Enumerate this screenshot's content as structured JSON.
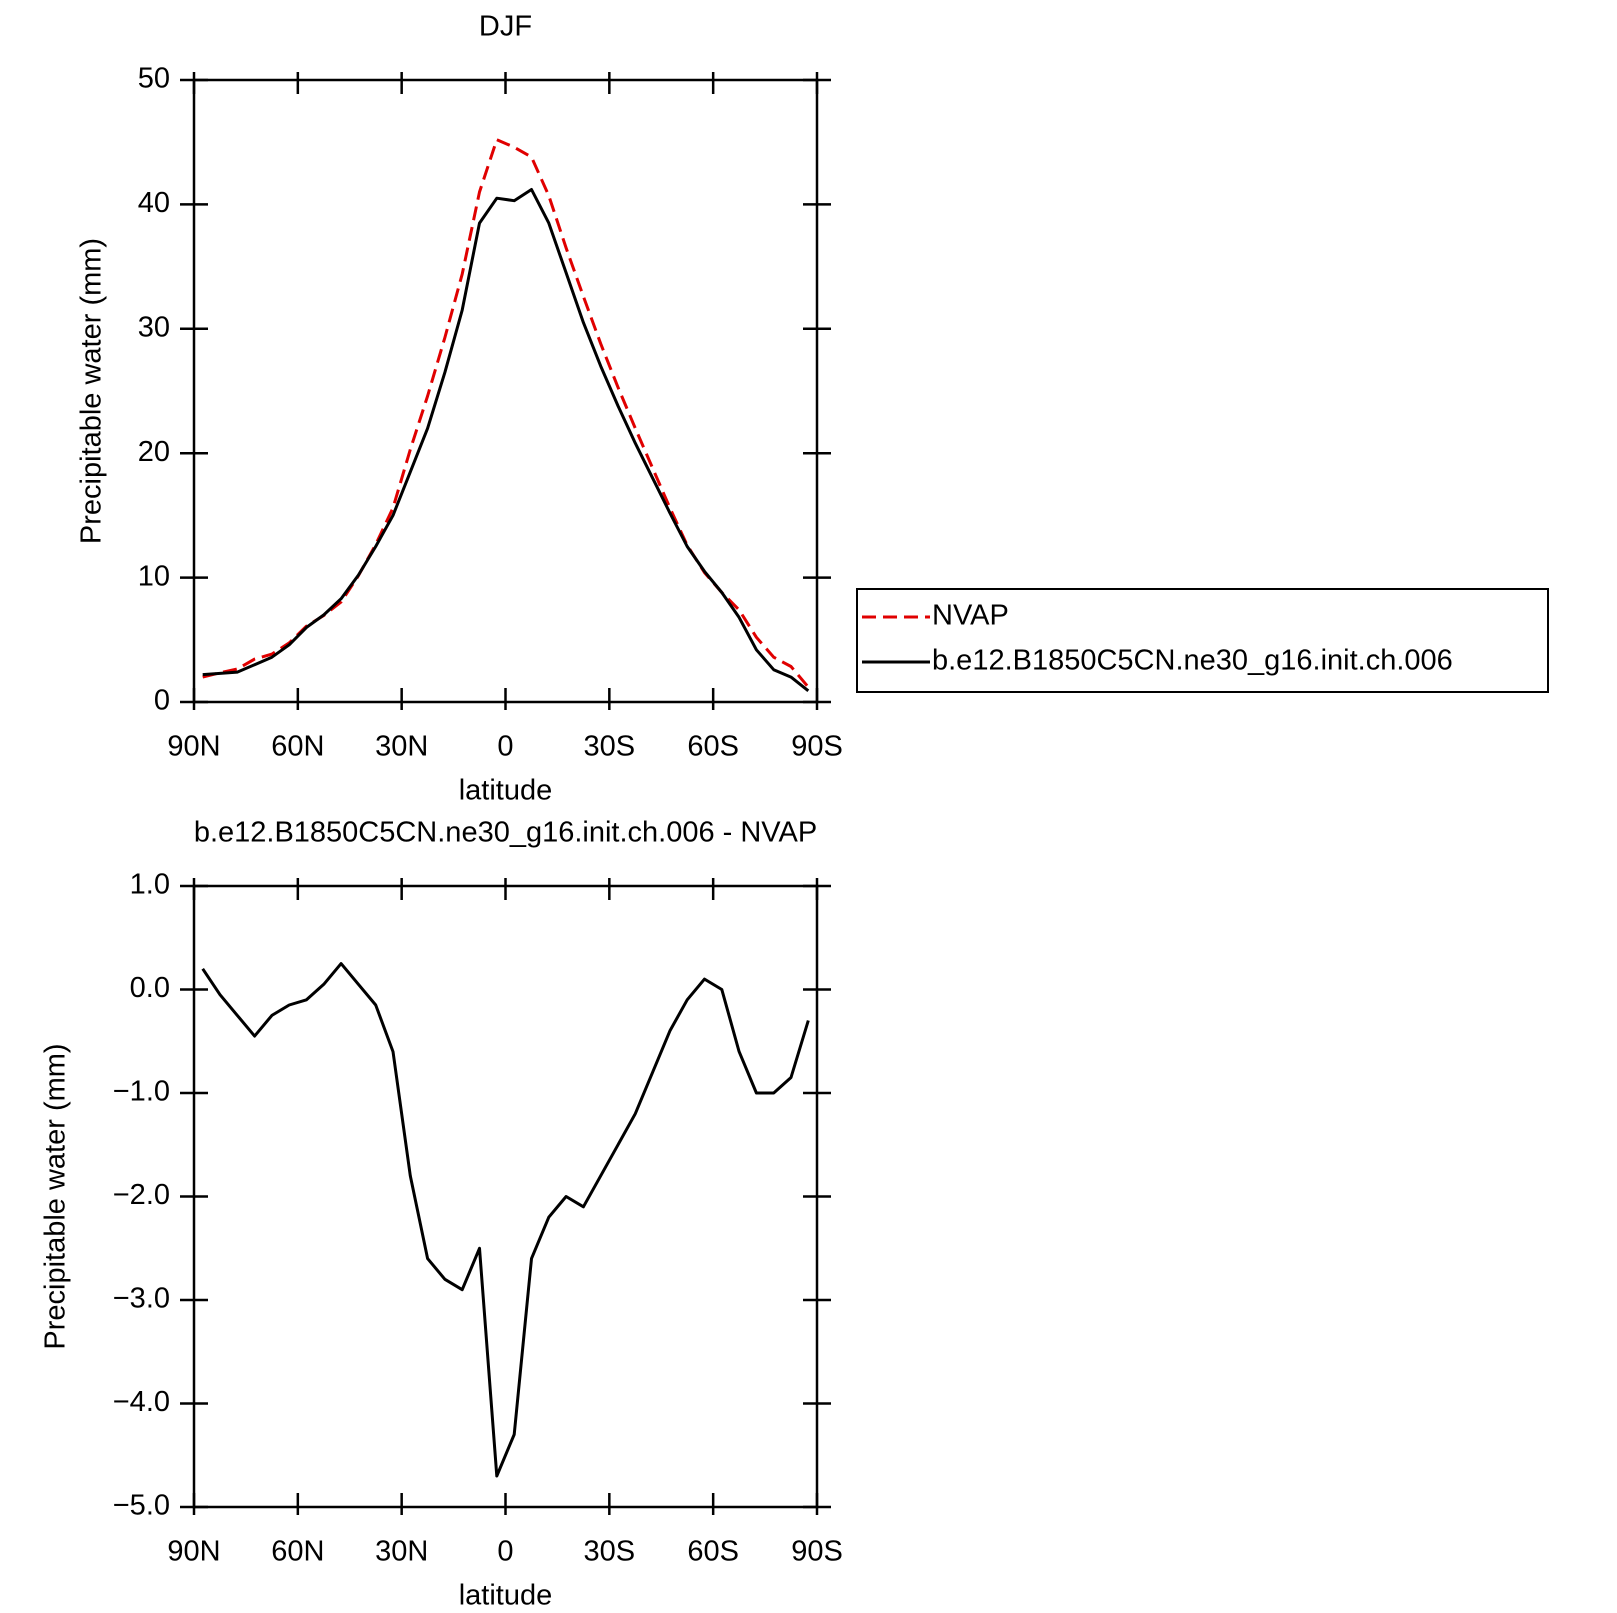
{
  "chart_data": [
    {
      "type": "line",
      "title": "DJF",
      "xlabel": "latitude",
      "ylabel": "Precipitable water (mm)",
      "x": [
        87.5,
        82.5,
        77.5,
        72.5,
        67.5,
        62.5,
        57.5,
        52.5,
        47.5,
        42.5,
        37.5,
        32.5,
        27.5,
        22.5,
        17.5,
        12.5,
        7.5,
        2.5,
        -2.5,
        -7.5,
        -12.5,
        -17.5,
        -22.5,
        -27.5,
        -32.5,
        -37.5,
        -42.5,
        -47.5,
        -52.5,
        -57.5,
        -62.5,
        -67.5,
        -72.5,
        -77.5,
        -82.5,
        -87.5
      ],
      "series": [
        {
          "name": "NVAP",
          "color": "#e00000",
          "dash": true,
          "values": [
            2.0,
            2.35,
            2.65,
            3.45,
            3.85,
            4.75,
            6.1,
            6.95,
            8.05,
            10.15,
            12.65,
            15.6,
            20.3,
            24.6,
            29.3,
            34.4,
            41.0,
            45.2,
            44.6,
            43.8,
            40.7,
            36.5,
            32.6,
            28.8,
            25.3,
            22.0,
            18.8,
            15.6,
            12.6,
            10.4,
            8.8,
            7.4,
            5.2,
            3.6,
            2.85,
            1.2
          ]
        },
        {
          "name": "b.e12.B1850C5CN.ne30_g16.init.ch.006",
          "color": "#000000",
          "dash": false,
          "values": [
            2.2,
            2.3,
            2.4,
            3.0,
            3.6,
            4.6,
            6.0,
            7.0,
            8.3,
            10.2,
            12.5,
            15.0,
            18.5,
            22.0,
            26.5,
            31.5,
            38.5,
            40.5,
            40.3,
            41.2,
            38.5,
            34.5,
            30.5,
            27.0,
            23.8,
            20.8,
            18.0,
            15.2,
            12.5,
            10.5,
            8.8,
            6.8,
            4.2,
            2.6,
            2.0,
            0.9
          ]
        }
      ],
      "xlim": [
        90,
        -90
      ],
      "xticks": [
        {
          "value": 90,
          "label": "90N"
        },
        {
          "value": 60,
          "label": "60N"
        },
        {
          "value": 30,
          "label": "30N"
        },
        0,
        {
          "value": -30,
          "label": "30S"
        },
        {
          "value": -60,
          "label": "60S"
        },
        {
          "value": -90,
          "label": "90S"
        }
      ],
      "ylim": [
        0,
        50
      ],
      "yticks": [
        0,
        10,
        20,
        30,
        40,
        50
      ],
      "legend": "right"
    },
    {
      "type": "line",
      "title": "b.e12.B1850C5CN.ne30_g16.init.ch.006 - NVAP",
      "xlabel": "latitude",
      "ylabel": "Precipitable water (mm)",
      "x": [
        87.5,
        82.5,
        77.5,
        72.5,
        67.5,
        62.5,
        57.5,
        52.5,
        47.5,
        42.5,
        37.5,
        32.5,
        27.5,
        22.5,
        17.5,
        12.5,
        7.5,
        2.5,
        -2.5,
        -7.5,
        -12.5,
        -17.5,
        -22.5,
        -27.5,
        -32.5,
        -37.5,
        -42.5,
        -47.5,
        -52.5,
        -57.5,
        -62.5,
        -67.5,
        -72.5,
        -77.5,
        -82.5,
        -87.5
      ],
      "series": [
        {
          "color": "#000000",
          "dash": false,
          "values": [
            0.2,
            -0.05,
            -0.25,
            -0.45,
            -0.25,
            -0.15,
            -0.1,
            0.05,
            0.25,
            0.05,
            -0.15,
            -0.6,
            -1.8,
            -2.6,
            -2.8,
            -2.9,
            -2.5,
            -4.7,
            -4.3,
            -2.6,
            -2.2,
            -2.0,
            -2.1,
            -1.8,
            -1.5,
            -1.2,
            -0.8,
            -0.4,
            -0.1,
            0.1,
            0.0,
            -0.6,
            -1.0,
            -1.0,
            -0.85,
            -0.3
          ]
        }
      ],
      "xlim": [
        90,
        -90
      ],
      "xticks": [
        {
          "value": 90,
          "label": "90N"
        },
        {
          "value": 60,
          "label": "60N"
        },
        {
          "value": 30,
          "label": "30N"
        },
        0,
        {
          "value": -30,
          "label": "30S"
        },
        {
          "value": -60,
          "label": "60S"
        },
        {
          "value": -90,
          "label": "90S"
        }
      ],
      "ylim": [
        -5,
        1
      ],
      "yticks": [
        {
          "value": 1,
          "label": "1.0"
        },
        {
          "value": 0,
          "label": "0.0"
        },
        {
          "value": -1,
          "label": "−1.0"
        },
        {
          "value": -2,
          "label": "−2.0"
        },
        {
          "value": -3,
          "label": "−3.0"
        },
        {
          "value": -4,
          "label": "−4.0"
        },
        {
          "value": -5,
          "label": "−5.0"
        }
      ]
    }
  ]
}
